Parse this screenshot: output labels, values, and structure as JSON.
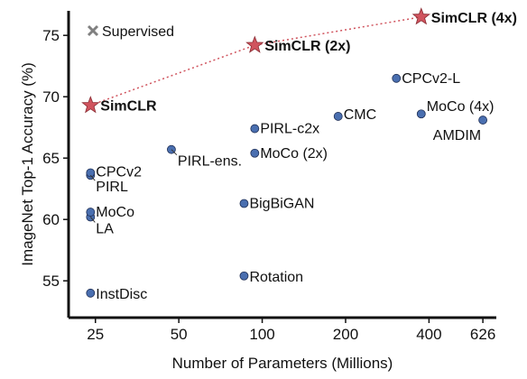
{
  "chart_data": {
    "type": "scatter",
    "xlabel": "Number of Parameters (Millions)",
    "ylabel": "ImageNet Top-1 Accuracy (%)",
    "x_scale": "log",
    "xlim": [
      20,
      700
    ],
    "ylim": [
      52,
      77
    ],
    "x_ticks": [
      25,
      50,
      100,
      200,
      400,
      626
    ],
    "y_ticks": [
      55,
      60,
      65,
      70,
      75
    ],
    "grid": false,
    "legend": {
      "label": "Supervised",
      "marker": "x",
      "color": "#808080",
      "placement": "top-left"
    },
    "colors": {
      "points": "#4a6fb0",
      "stars": "#d0545e",
      "star_line": "#d0545e"
    },
    "points": [
      {
        "label": "InstDisc",
        "x": 24,
        "y": 54.0
      },
      {
        "label": "Rotation",
        "x": 86,
        "y": 55.4
      },
      {
        "label": "LA",
        "x": 24,
        "y": 60.2
      },
      {
        "label": "MoCo",
        "x": 24,
        "y": 60.6
      },
      {
        "label": "BigBiGAN",
        "x": 86,
        "y": 61.3
      },
      {
        "label": "PIRL",
        "x": 24,
        "y": 63.6
      },
      {
        "label": "CPCv2",
        "x": 24,
        "y": 63.8
      },
      {
        "label": "PIRL-ens.",
        "x": 47,
        "y": 65.7
      },
      {
        "label": "MoCo (2x)",
        "x": 94,
        "y": 65.4
      },
      {
        "label": "PIRL-c2x",
        "x": 94,
        "y": 67.4
      },
      {
        "label": "CMC",
        "x": 188,
        "y": 68.4
      },
      {
        "label": "MoCo (4x)",
        "x": 375,
        "y": 68.6
      },
      {
        "label": "AMDIM",
        "x": 626,
        "y": 68.1
      },
      {
        "label": "CPCv2-L",
        "x": 305,
        "y": 71.5
      }
    ],
    "stars": [
      {
        "label": "SimCLR",
        "x": 24,
        "y": 69.3
      },
      {
        "label": "SimCLR (2x)",
        "x": 94,
        "y": 74.2
      },
      {
        "label": "SimCLR (4x)",
        "x": 375,
        "y": 76.5
      }
    ]
  }
}
